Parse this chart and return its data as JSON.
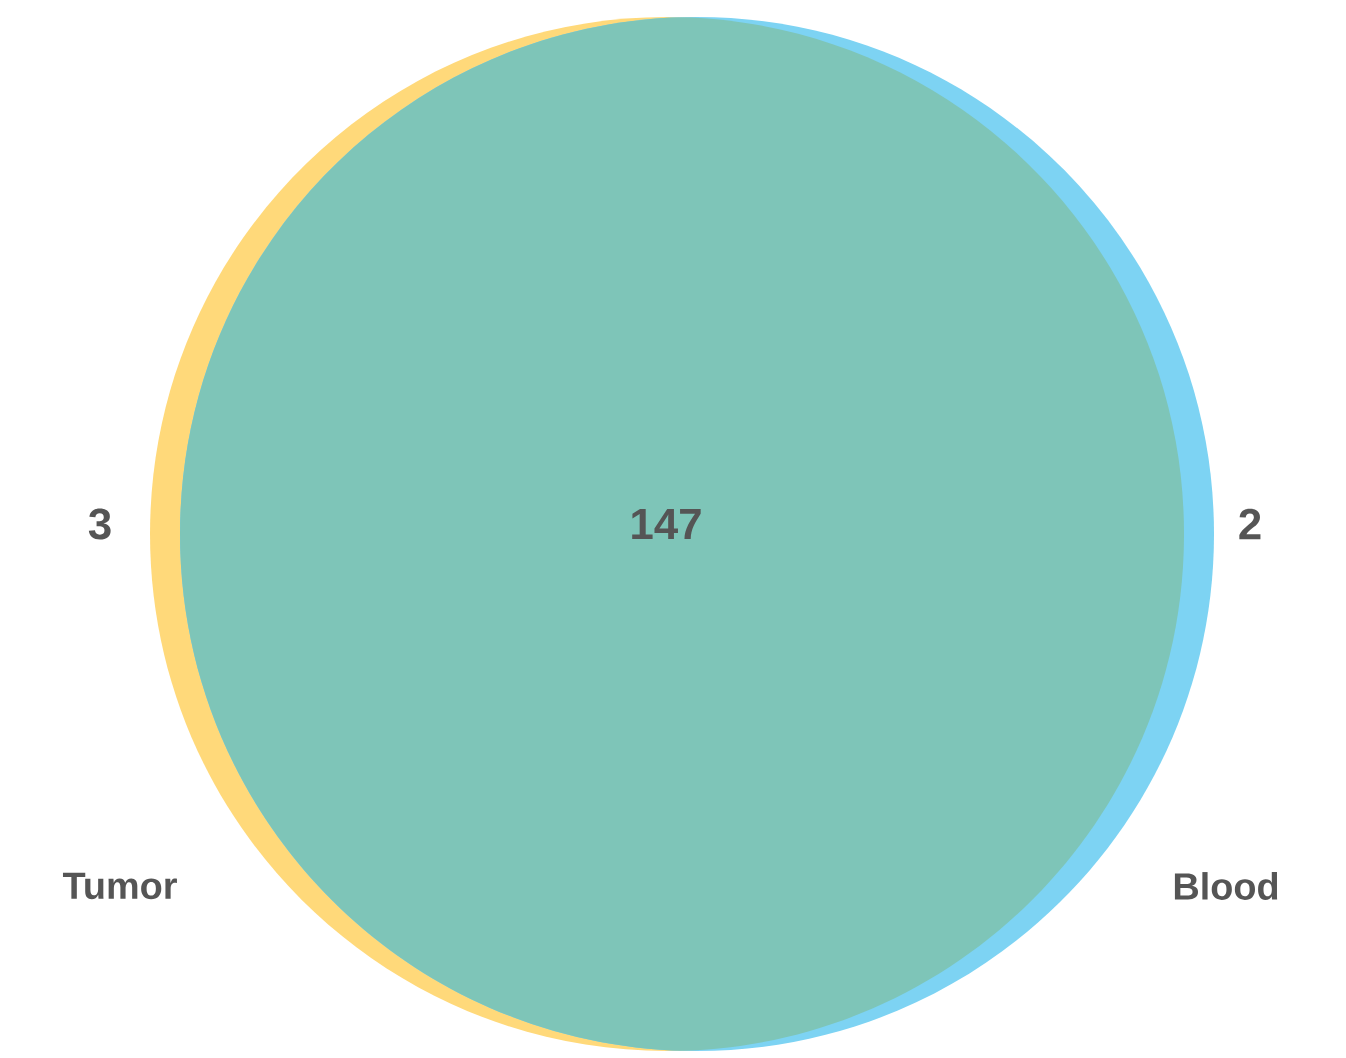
{
  "chart_data": {
    "type": "other",
    "categories": [
      "Tumor",
      null,
      "Blood"
    ],
    "values": [
      3,
      147,
      2
    ],
    "colors": [
      "#ffd97a",
      "#7ec5b8",
      "#7dd3f3"
    ],
    "data_labels": true
  }
}
